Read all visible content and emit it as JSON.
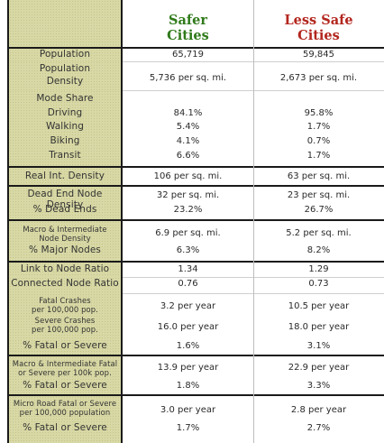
{
  "header": {
    "col1": [
      "Safer",
      "Cities"
    ],
    "col2": [
      "Less Safe",
      "Cities"
    ]
  },
  "colors": {
    "safer": "#2f7a1a",
    "less_safe": "#b3261e",
    "label_bg": "#d8d8a6"
  },
  "rows": [
    {
      "label": [
        "Population"
      ],
      "v1": [
        "65,719"
      ],
      "v2": [
        "59,845"
      ]
    },
    {
      "label": [
        "Population",
        "Density"
      ],
      "v1": [
        "5,736 per sq. mi."
      ],
      "v2": [
        "2,673 per sq. mi."
      ]
    },
    {
      "label": [
        "Mode Share",
        "Driving",
        "Walking",
        "Biking",
        "Transit"
      ],
      "v1": [
        "",
        "84.1%",
        "5.4%",
        "4.1%",
        "6.6%"
      ],
      "v2": [
        "",
        "95.8%",
        "1.7%",
        "0.7%",
        "1.7%"
      ]
    },
    {
      "label": [
        "Real Int. Density"
      ],
      "v1": [
        "106 per sq. mi."
      ],
      "v2": [
        "63 per sq. mi."
      ]
    },
    {
      "label": [
        "Dead End Node Density",
        "% Dead Ends"
      ],
      "v1": [
        "32 per sq. mi.",
        "23.2%"
      ],
      "v2": [
        "23 per sq. mi.",
        "26.7%"
      ]
    },
    {
      "label": [
        "Macro & Intermediate",
        "Node Density",
        "% Major Nodes"
      ],
      "v1": [
        "6.9 per sq. mi.",
        "6.3%"
      ],
      "v2": [
        "5.2 per sq. mi.",
        "8.2%"
      ]
    },
    {
      "label": [
        "Link to Node Ratio"
      ],
      "v1": [
        "1.34"
      ],
      "v2": [
        "1.29"
      ]
    },
    {
      "label": [
        "Connected Node Ratio"
      ],
      "v1": [
        "0.76"
      ],
      "v2": [
        "0.73"
      ]
    },
    {
      "label": [
        "Fatal Crashes",
        "per 100,000 pop.",
        "Severe Crashes",
        "per 100,000 pop.",
        "% Fatal or Severe"
      ],
      "v1": [
        "3.2 per year",
        "16.0 per year",
        "1.6%"
      ],
      "v2": [
        "10.5 per year",
        "18.0 per year",
        "3.1%"
      ]
    },
    {
      "label": [
        "Macro & Intermediate Fatal",
        "or Severe per 100k pop.",
        "% Fatal or Severe"
      ],
      "v1": [
        "13.9 per year",
        "1.8%"
      ],
      "v2": [
        "22.9 per year",
        "3.3%"
      ]
    },
    {
      "label": [
        "Micro Road Fatal or Severe",
        "per 100,000 population",
        "% Fatal or Severe"
      ],
      "v1": [
        "3.0 per year",
        "1.7%"
      ],
      "v2": [
        "2.8 per year",
        "2.7%"
      ]
    }
  ]
}
